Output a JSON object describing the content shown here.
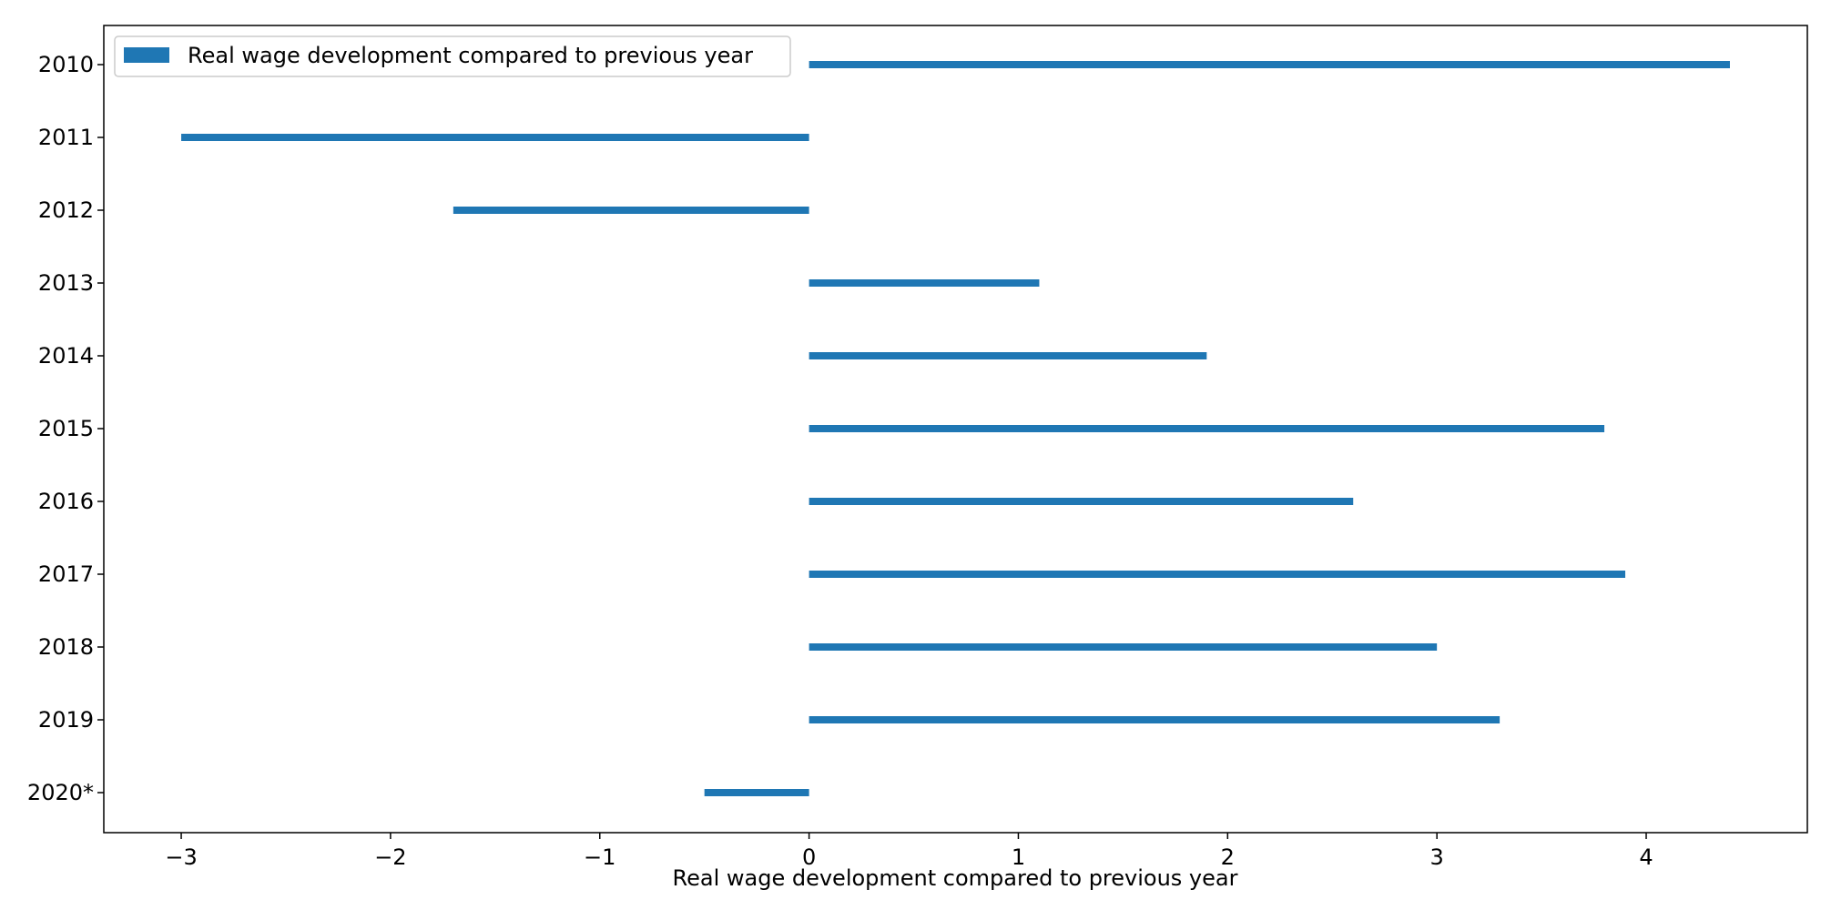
{
  "chart_data": {
    "type": "bar",
    "orientation": "horizontal",
    "categories": [
      "2010",
      "2011",
      "2012",
      "2013",
      "2014",
      "2015",
      "2016",
      "2017",
      "2018",
      "2019",
      "2020*"
    ],
    "series": [
      {
        "name": "Real wage development compared to previous year",
        "color": "#1f77b4",
        "values": [
          4.4,
          -3.0,
          -1.7,
          1.1,
          1.9,
          3.8,
          2.6,
          3.9,
          3.0,
          3.3,
          -0.5
        ]
      }
    ],
    "xlabel": "Real wage development compared to previous year",
    "ylabel": "",
    "xlim": [
      -3.37,
      4.77
    ],
    "xticks": [
      -3,
      -2,
      -1,
      0,
      1,
      2,
      3,
      4
    ],
    "xtick_labels": [
      "−3",
      "−2",
      "−1",
      "0",
      "1",
      "2",
      "3",
      "4"
    ],
    "grid": false,
    "legend_position": "top-left"
  }
}
